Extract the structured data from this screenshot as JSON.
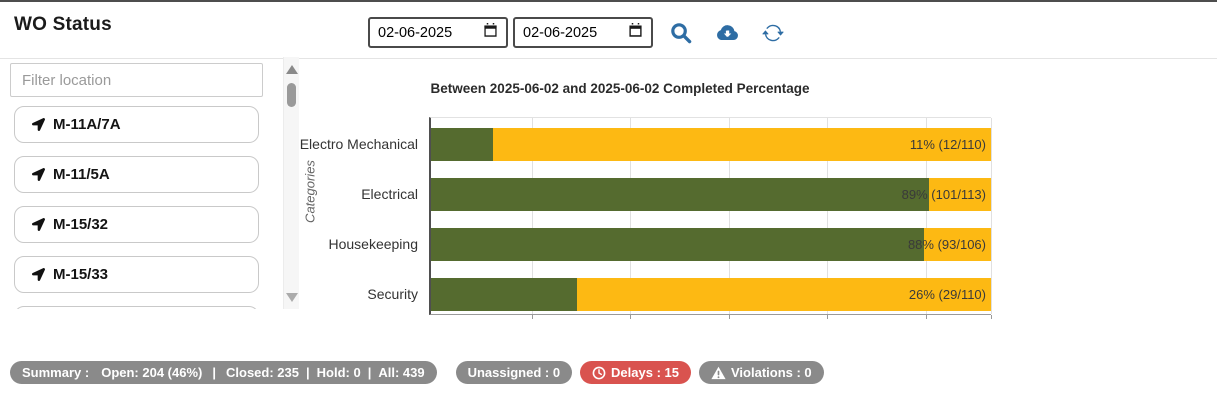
{
  "header": {
    "title": "WO Status",
    "date_from": "02-06-2025",
    "date_to": "02-06-2025"
  },
  "sidebar": {
    "filter_placeholder": "Filter location",
    "items": [
      {
        "label": "M-11A/7A"
      },
      {
        "label": "M-11/5A"
      },
      {
        "label": "M-15/32"
      },
      {
        "label": "M-15/33"
      }
    ]
  },
  "chart_data": {
    "type": "bar",
    "orientation": "horizontal",
    "stacked": "percentage",
    "title": "Between 2025-06-02 and 2025-06-02 Completed Percentage",
    "ylabel": "Categories",
    "categories": [
      "Electro Mechanical",
      "Electrical",
      "Housekeeping",
      "Security"
    ],
    "completed_pct": [
      11,
      89,
      88,
      26
    ],
    "completed_counts": [
      12,
      101,
      93,
      29
    ],
    "total_counts": [
      110,
      113,
      106,
      110
    ],
    "data_labels": [
      "11% (12/110)",
      "89% (101/113)",
      "88% (93/106)",
      "26% (29/110)"
    ],
    "colors": {
      "completed": "#556B2F",
      "remaining": "#FDB913"
    },
    "gridlines_pct": [
      18,
      35.6,
      53.2,
      70.8,
      88.4,
      100
    ],
    "grid": true,
    "legend": "none"
  },
  "summary": {
    "label": "Summary :",
    "open": "Open: 204 (46%)",
    "closed": "Closed: 235",
    "hold": "Hold: 0",
    "all": "All: 439",
    "separator": "|",
    "unassigned": "Unassigned : 0",
    "delays": "Delays : 15",
    "violations": "Violations : 0",
    "pill_color": "#8a8a8a",
    "delays_color": "#d9534f"
  },
  "colors": {
    "accent_blue": "#2e6da4",
    "top_border": "#4d4d4d"
  }
}
